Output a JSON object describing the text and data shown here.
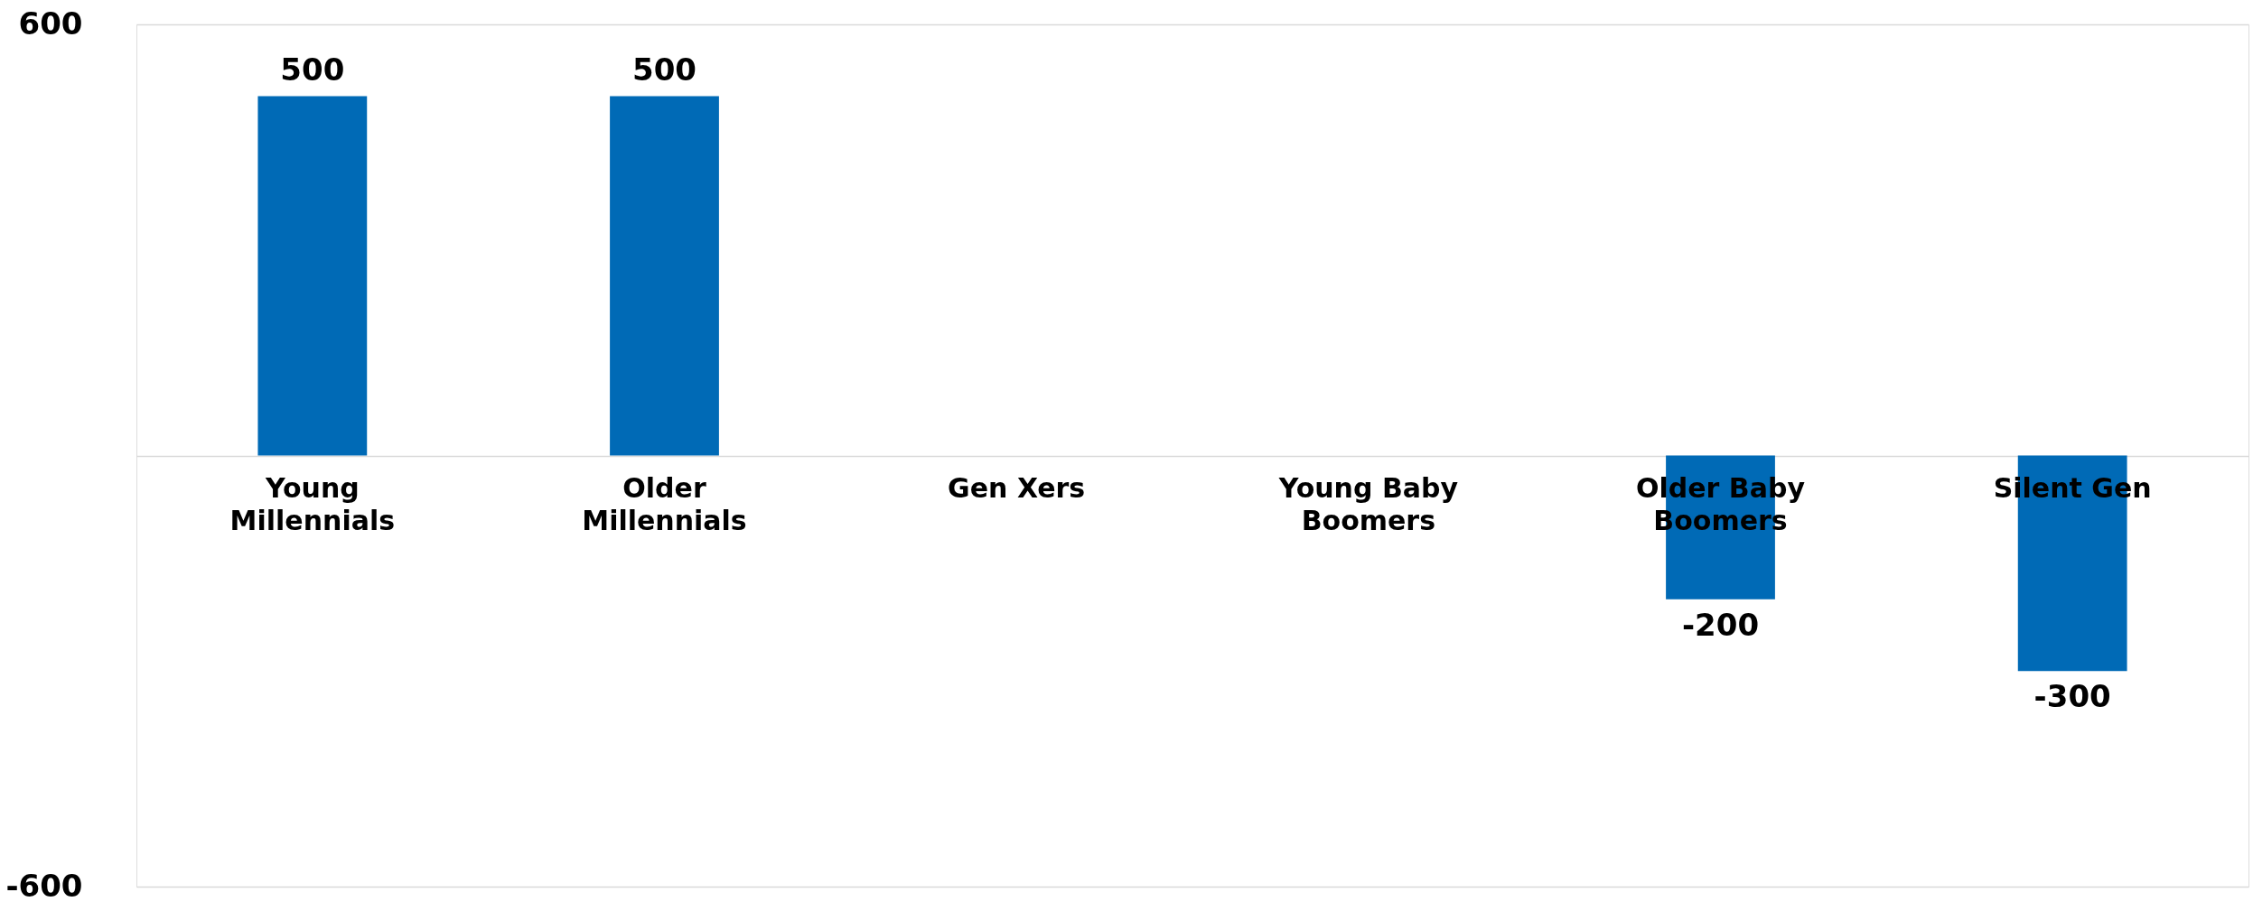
{
  "chart_data": {
    "type": "bar",
    "categories": [
      "Young Millennials",
      "Older Millennials",
      "Gen Xers",
      "Young Baby Boomers",
      "Older Baby Boomers",
      "Silent Gen"
    ],
    "values": [
      500,
      500,
      0,
      0,
      -200,
      -300
    ],
    "value_labels": [
      "500",
      "500",
      null,
      null,
      "-200",
      "-300"
    ],
    "color": "#006ab6",
    "ylim": [
      -600,
      600
    ],
    "yticks": [
      600,
      {
        "value": 0,
        "label": null
      },
      -600
    ],
    "grid": "y"
  }
}
